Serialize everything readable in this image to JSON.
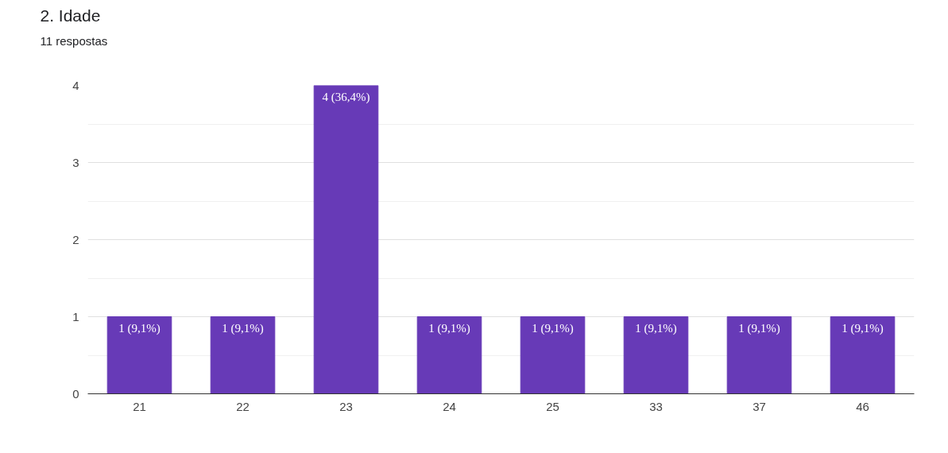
{
  "chart_data": {
    "type": "bar",
    "title": "2. Idade",
    "subtitle": "11 respostas",
    "categories": [
      "21",
      "22",
      "23",
      "24",
      "25",
      "33",
      "37",
      "46"
    ],
    "values": [
      1,
      1,
      4,
      1,
      1,
      1,
      1,
      1
    ],
    "value_labels": [
      "1 (9,1%)",
      "1 (9,1%)",
      "4 (36,4%)",
      "1 (9,1%)",
      "1 (9,1%)",
      "1 (9,1%)",
      "1 (9,1%)",
      "1 (9,1%)"
    ],
    "color": "#673ab7",
    "ylim": [
      0,
      4
    ],
    "yticks": [
      0,
      1,
      2,
      3,
      4
    ],
    "grid": "y"
  }
}
